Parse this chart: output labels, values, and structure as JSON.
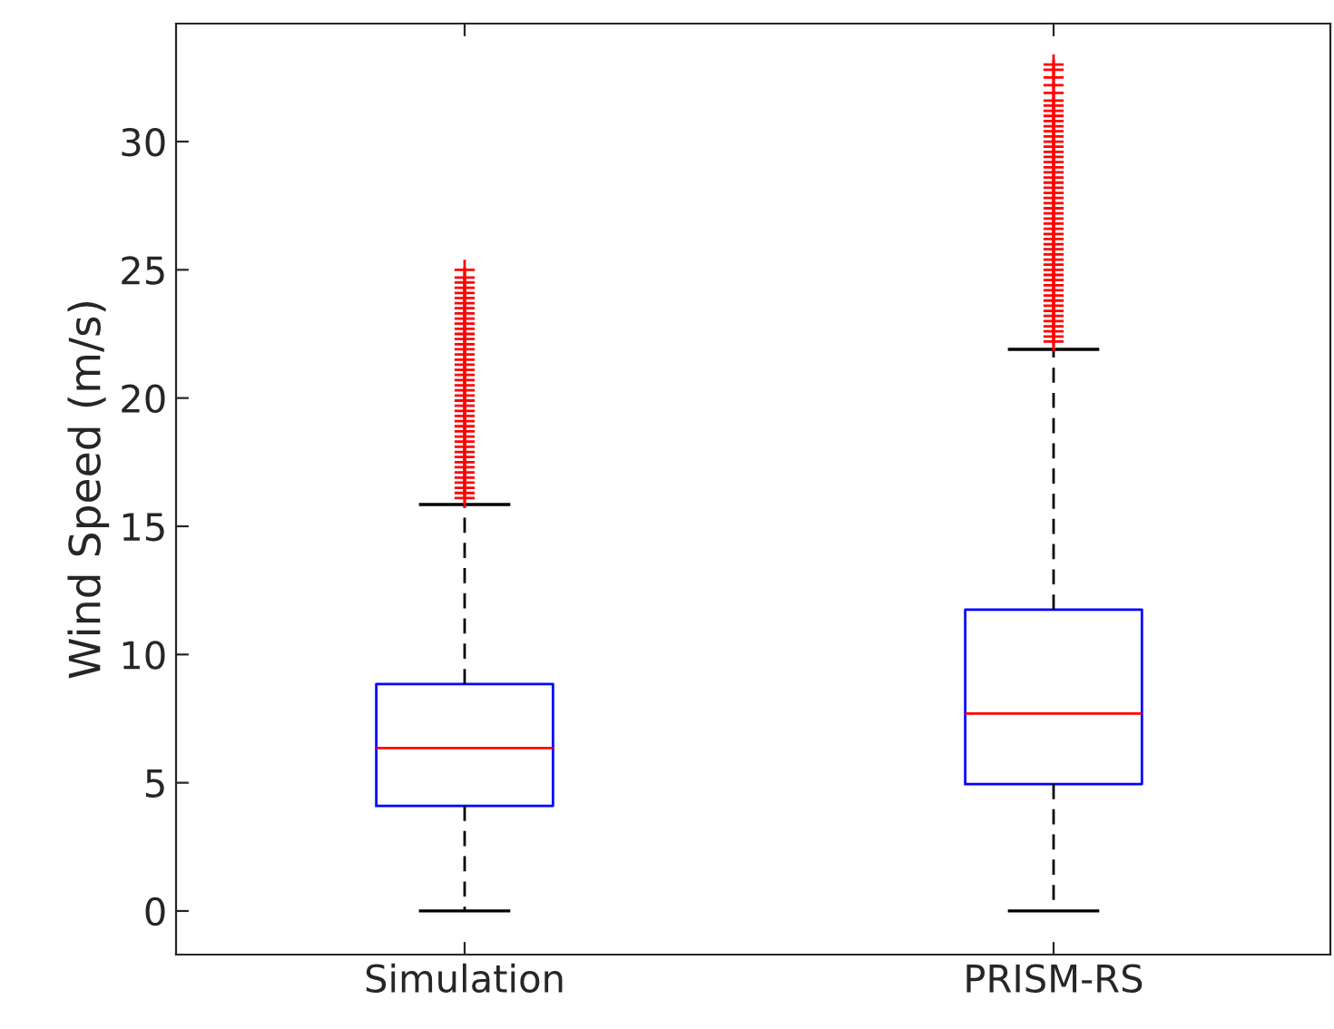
{
  "chart_data": {
    "type": "box",
    "ylabel": "Wind Speed (m/s)",
    "categories": [
      "Simulation",
      "PRISM-RS"
    ],
    "ylim": [
      -1.7,
      34.6
    ],
    "yticks": [
      0,
      5,
      10,
      15,
      20,
      25,
      30
    ],
    "grid": false,
    "marker": "cross",
    "series": [
      {
        "color": "#0000ff",
        "boxes": [
          {
            "low": 0,
            "q1": 4.1,
            "median": 6.35,
            "q3": 8.85,
            "high": 15.85,
            "outliers": [
              16.1,
              16.3,
              16.5,
              16.7,
              16.9,
              17.1,
              17.3,
              17.5,
              17.7,
              17.9,
              18.1,
              18.3,
              18.5,
              18.7,
              18.9,
              19.1,
              19.3,
              19.5,
              19.7,
              19.9,
              20.1,
              20.3,
              20.5,
              20.7,
              20.9,
              21.1,
              21.3,
              21.5,
              21.7,
              21.9,
              22.1,
              22.3,
              22.5,
              22.7,
              22.9,
              23.1,
              23.3,
              23.5,
              23.7,
              23.9,
              24.1,
              24.3,
              24.5,
              24.7,
              25.0
            ]
          },
          {
            "low": 0,
            "q1": 4.95,
            "median": 7.7,
            "q3": 11.75,
            "high": 21.9,
            "outliers": [
              22.2,
              22.4,
              22.6,
              22.8,
              23.0,
              23.2,
              23.4,
              23.6,
              23.8,
              24.0,
              24.2,
              24.4,
              24.6,
              24.8,
              25.0,
              25.2,
              25.4,
              25.6,
              25.8,
              26.0,
              26.2,
              26.4,
              26.6,
              26.8,
              27.0,
              27.2,
              27.4,
              27.6,
              27.8,
              28.0,
              28.2,
              28.4,
              28.6,
              28.8,
              29.0,
              29.2,
              29.4,
              29.6,
              29.8,
              30.0,
              30.2,
              30.4,
              30.6,
              30.8,
              31.0,
              31.2,
              31.4,
              31.6,
              31.9,
              32.2,
              32.5,
              32.8,
              33.0
            ]
          }
        ]
      }
    ]
  }
}
